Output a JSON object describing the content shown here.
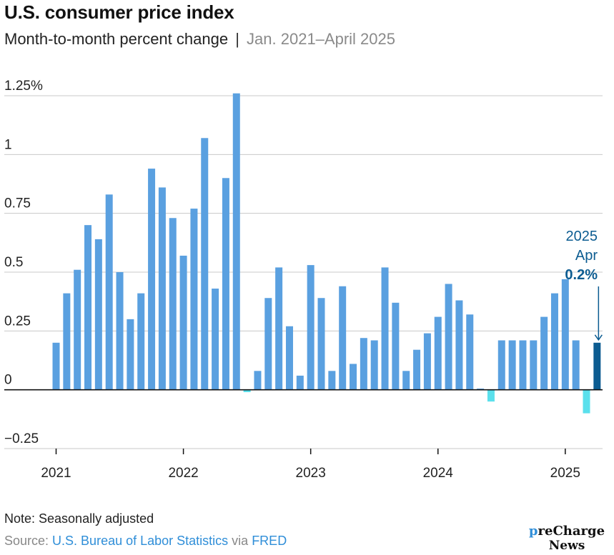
{
  "title": "U.S. consumer price index",
  "subtitle": {
    "main": "Month-to-month percent change",
    "separator": "|",
    "range": "Jan. 2021–April 2025"
  },
  "colors": {
    "bar": "#5aa0e0",
    "negative": "#5ae0ec",
    "highlight": "#0c5c91",
    "annotation": "#0c5c91",
    "grid": "#c8c8c8"
  },
  "chart_data": {
    "type": "bar",
    "title": "U.S. consumer price index",
    "subtitle": "Month-to-month percent change | Jan. 2021–April 2025",
    "xlabel": "",
    "ylabel": "",
    "ylim": [
      -0.25,
      1.25
    ],
    "y_ticks": [
      {
        "value": 1.25,
        "label": "1.25%"
      },
      {
        "value": 1.0,
        "label": "1"
      },
      {
        "value": 0.75,
        "label": "0.75"
      },
      {
        "value": 0.5,
        "label": "0.5"
      },
      {
        "value": 0.25,
        "label": "0.25"
      },
      {
        "value": 0,
        "label": "0"
      },
      {
        "value": -0.25,
        "label": "−0.25"
      }
    ],
    "x_ticks": [
      {
        "index": 0,
        "label": "2021"
      },
      {
        "index": 12,
        "label": "2022"
      },
      {
        "index": 24,
        "label": "2023"
      },
      {
        "index": 36,
        "label": "2024"
      },
      {
        "index": 48,
        "label": "2025"
      }
    ],
    "grid": true,
    "series": [
      {
        "name": "CPI month-to-month % change (seasonally adjusted)",
        "values": [
          0.2,
          0.41,
          0.51,
          0.7,
          0.64,
          0.83,
          0.5,
          0.3,
          0.41,
          0.94,
          0.86,
          0.73,
          0.57,
          0.77,
          1.07,
          0.43,
          0.9,
          1.26,
          -0.01,
          0.08,
          0.39,
          0.52,
          0.27,
          0.06,
          0.53,
          0.39,
          0.08,
          0.44,
          0.11,
          0.22,
          0.21,
          0.52,
          0.37,
          0.08,
          0.17,
          0.24,
          0.31,
          0.45,
          0.38,
          0.32,
          0.005,
          -0.05,
          0.21,
          0.21,
          0.21,
          0.21,
          0.31,
          0.41,
          0.47,
          0.21,
          -0.1,
          0.2
        ]
      }
    ],
    "highlight": {
      "index": 51,
      "label_year": "2025",
      "label_month": "Apr",
      "label_value": "0.2%"
    }
  },
  "footer": {
    "note": "Note: Seasonally adjusted",
    "source_prefix": "Source: ",
    "source_link1": "U.S. Bureau of Labor Statistics",
    "source_via": " via ",
    "source_link2": "FRED"
  },
  "logo": {
    "part1": "p",
    "part2": "reCharge",
    "line2": "News"
  }
}
